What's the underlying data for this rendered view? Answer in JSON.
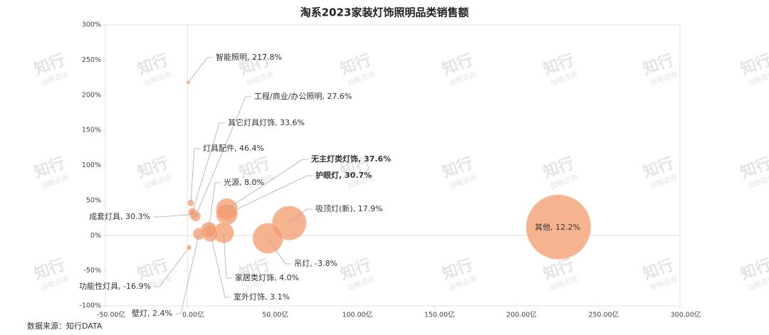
{
  "chart_data": {
    "type": "bubble",
    "title": "淘系2023家装灯饰照明品类销售额",
    "source": "数据来源：知行DATA",
    "watermark": {
      "title": "知行",
      "subtitle": "战略咨询"
    },
    "labels": [
      "智能照明, 217.8%",
      "工程/商业/办公照明, 27.6%",
      "其它灯具灯饰, 33.6%",
      "灯具配件, 46.4%",
      "无主灯类灯饰, 37.6%",
      "护眼灯, 30.7%",
      "光源, 8.0%",
      "吸顶灯(新), 17.9%",
      "成套灯具, 30.3%",
      "其他, 12.2%",
      "吊灯, -3.8%",
      "家居类灯饰, 4.0%",
      "功能性灯具, -16.9%",
      "室外灯饰, 3.1%",
      "壁灯, 2.4%"
    ],
    "x": [
      0.5,
      5,
      3,
      2,
      24,
      24,
      13,
      62,
      4,
      226,
      49,
      22,
      1,
      14,
      7
    ],
    "values": [
      217.8,
      27.6,
      33.6,
      46.4,
      37.6,
      30.7,
      8.0,
      17.9,
      30.3,
      12.2,
      -3.8,
      4.0,
      -16.9,
      3.1,
      2.4
    ],
    "color": "#f39a6b",
    "xlim": [
      -50,
      300
    ],
    "xticks": [
      {
        "value": -50,
        "label": "-50.00亿"
      },
      {
        "value": 0,
        "label": "0.00亿"
      },
      {
        "value": 50,
        "label": "50.00亿"
      },
      {
        "value": 100,
        "label": "100.00亿"
      },
      {
        "value": 150,
        "label": "150.00亿"
      },
      {
        "value": 200,
        "label": "200.00亿"
      },
      {
        "value": 250,
        "label": "250.00亿"
      },
      {
        "value": 300,
        "label": "300.00亿"
      }
    ],
    "ylim": [
      -100,
      300
    ],
    "yticks": [
      {
        "value": -100,
        "label": "-100%"
      },
      {
        "value": -50,
        "label": "-50%"
      },
      {
        "value": 0,
        "label": "0%"
      },
      {
        "value": 50,
        "label": "50%"
      },
      {
        "value": 100,
        "label": "100%"
      },
      {
        "value": 150,
        "label": "150%"
      },
      {
        "value": 200,
        "label": "200%"
      },
      {
        "value": 250,
        "label": "250%"
      },
      {
        "value": 300,
        "label": "300%"
      }
    ]
  }
}
